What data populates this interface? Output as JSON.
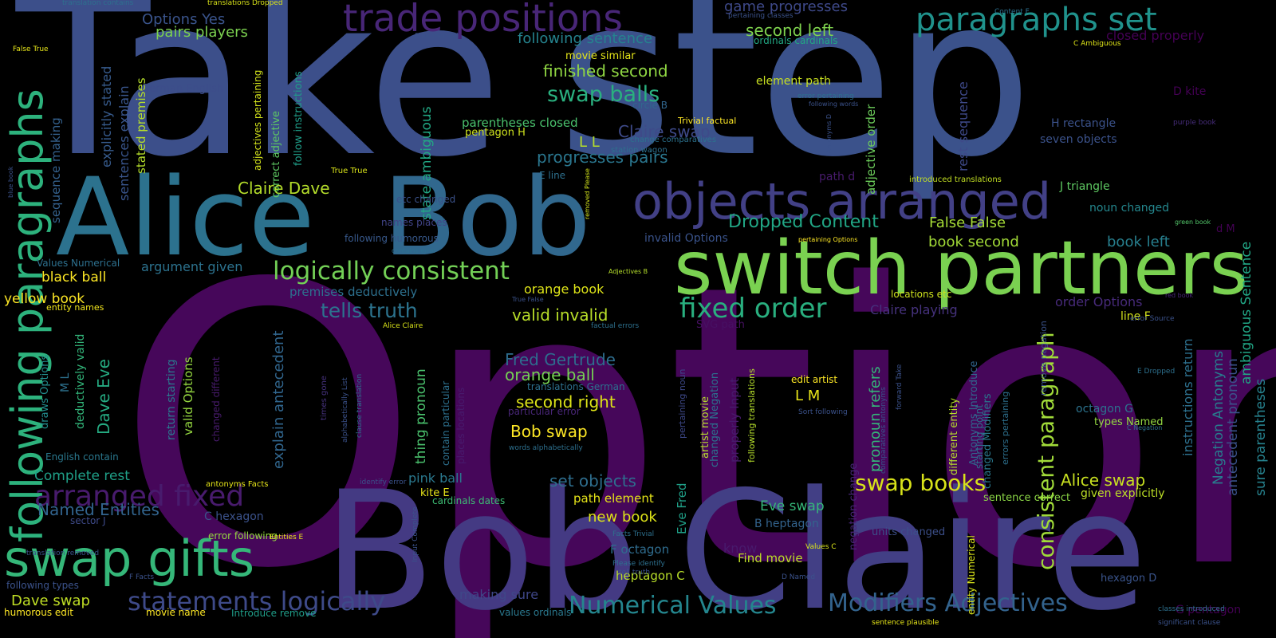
{
  "words": [
    {
      "text": "Options",
      "c": "#46075a"
    },
    {
      "text": "Take",
      "c": "#3c4f8a"
    },
    {
      "text": "step",
      "c": "#3b528b"
    },
    {
      "text": "Claire",
      "c": "#423f85"
    },
    {
      "text": "Bob",
      "c": "#443a83"
    },
    {
      "text": "Bob",
      "c": "#31688e"
    },
    {
      "text": "Alice",
      "c": "#2c728e"
    },
    {
      "text": "switch partners",
      "c": "#7ad151"
    },
    {
      "text": "objects arranged",
      "c": "#424086"
    },
    {
      "text": "trade positions",
      "c": "#482677"
    },
    {
      "text": "paragraphs set",
      "c": "#20928c"
    },
    {
      "text": "swap gifts",
      "c": "#35b779"
    },
    {
      "text": "following paragraphs",
      "c": "#2db27d"
    },
    {
      "text": "logically consistent",
      "c": "#73d056"
    },
    {
      "text": "arranged fixed",
      "c": "#481b6d"
    },
    {
      "text": "statements logically",
      "c": "#3e4a89"
    },
    {
      "text": "Numerical Values",
      "c": "#24868e"
    },
    {
      "text": "Modifiers Adjectives",
      "c": "#33638d"
    },
    {
      "text": "fixed order",
      "c": "#29af7f"
    },
    {
      "text": "consistent paragraph",
      "c": "#a0da39"
    },
    {
      "text": "swap books",
      "c": "#d8e219"
    },
    {
      "text": "Dropped Content",
      "c": "#21a685"
    },
    {
      "text": "tells truth",
      "c": "#2c738e"
    },
    {
      "text": "valid invalid",
      "c": "#b8de29"
    },
    {
      "text": "swap balls",
      "c": "#2ab07f"
    },
    {
      "text": "Named Entities",
      "c": "#32648e"
    },
    {
      "text": "Claire Dave",
      "c": "#b5de2b"
    },
    {
      "text": "Alice swap",
      "c": "#c8e020"
    },
    {
      "text": "second left",
      "c": "#7fd34e"
    },
    {
      "text": "finished second",
      "c": "#90d743"
    },
    {
      "text": "progresses pairs",
      "c": "#2a768e"
    },
    {
      "text": "Claire swap",
      "c": "#3e4a89"
    },
    {
      "text": "set objects",
      "c": "#2e6e8e"
    },
    {
      "text": "second right",
      "c": "#dde318"
    },
    {
      "text": "Bob swap",
      "c": "#fde725"
    },
    {
      "text": "orange ball",
      "c": "#75d054"
    },
    {
      "text": "orange book",
      "c": "#dde318"
    },
    {
      "text": "Fred Gertrude",
      "c": "#2e6d8e"
    },
    {
      "text": "Dave Eve",
      "c": "#25ab82"
    },
    {
      "text": "Options Yes",
      "c": "#3a548c"
    },
    {
      "text": "pairs players",
      "c": "#7cd250"
    },
    {
      "text": "following sentence",
      "c": "#25838e"
    },
    {
      "text": "game progresses",
      "c": "#3e4989"
    },
    {
      "text": "L L",
      "c": "#b5de2b"
    },
    {
      "text": "L M",
      "c": "#e7e419"
    },
    {
      "text": "black ball",
      "c": "#fde725"
    },
    {
      "text": "yellow book",
      "c": "#fde725"
    },
    {
      "text": "argument given",
      "c": "#2c728e"
    },
    {
      "text": "Complete rest",
      "c": "#1fa088"
    },
    {
      "text": "Eve swap",
      "c": "#35b779"
    },
    {
      "text": "Dave swap",
      "c": "#c0df25"
    },
    {
      "text": "new book",
      "c": "#dde318"
    },
    {
      "text": "pink ball",
      "c": "#2a788e"
    },
    {
      "text": "book second",
      "c": "#a2da37"
    },
    {
      "text": "book left",
      "c": "#277f8e"
    },
    {
      "text": "False False",
      "c": "#a5db36"
    },
    {
      "text": "closed properly",
      "c": "#440154"
    },
    {
      "text": "Claire playing",
      "c": "#46327e"
    },
    {
      "text": "order Options",
      "c": "#472a7a"
    },
    {
      "text": "sentences explain",
      "c": "#39558c"
    },
    {
      "text": "explicitly stated",
      "c": "#375b8d"
    },
    {
      "text": "stated premises",
      "c": "#b5de2b"
    },
    {
      "text": "sequence making",
      "c": "#34618d"
    },
    {
      "text": "state ambiguous",
      "c": "#22a884"
    },
    {
      "text": "rest sequence",
      "c": "#3e4989"
    },
    {
      "text": "adjective order",
      "c": "#6ccd5a"
    },
    {
      "text": "thing pronoun",
      "c": "#4ac16d"
    },
    {
      "text": "pronoun refers",
      "c": "#34b679"
    },
    {
      "text": "explain antecedent",
      "c": "#31668e"
    },
    {
      "text": "Negation Antonyms",
      "c": "#287c8e"
    },
    {
      "text": "antecedent pronoun",
      "c": "#3b528b"
    },
    {
      "text": "ambiguous Sentence",
      "c": "#21a685"
    },
    {
      "text": "sure parentheses",
      "c": "#26828e"
    },
    {
      "text": "instructions return",
      "c": "#2d708e"
    },
    {
      "text": "premises deductively",
      "c": "#2d708e"
    },
    {
      "text": "parentheses closed",
      "c": "#4ac16d"
    },
    {
      "text": "element path",
      "c": "#c8e020"
    },
    {
      "text": "path element",
      "c": "#e5e419"
    },
    {
      "text": "making sure",
      "c": "#3f4788"
    },
    {
      "text": "heptagon C",
      "c": "#b8de29"
    },
    {
      "text": "F octagon",
      "c": "#2f6c8e"
    },
    {
      "text": "Find movie",
      "c": "#bddf26"
    },
    {
      "text": "know",
      "c": "#481a6c"
    },
    {
      "text": "invalid Options",
      "c": "#3a538b"
    },
    {
      "text": "valid Options",
      "c": "#95d840"
    },
    {
      "text": "return starting",
      "c": "#2a788e"
    },
    {
      "text": "deductively valid",
      "c": "#32b67a"
    },
    {
      "text": "M L",
      "c": "#2d718e"
    },
    {
      "text": "draws Options",
      "c": "#228d8d"
    },
    {
      "text": "C hexagon",
      "c": "#3b528b"
    },
    {
      "text": "B heptagon",
      "c": "#33638d"
    },
    {
      "text": "hexagon D",
      "c": "#3a548c"
    },
    {
      "text": "G pentagon",
      "c": "#440154"
    },
    {
      "text": "octagon G",
      "c": "#2c738e"
    },
    {
      "text": "line F",
      "c": "#d2e21b"
    },
    {
      "text": "D kite",
      "c": "#440154"
    },
    {
      "text": "H rectangle",
      "c": "#3b528b"
    },
    {
      "text": "J triangle",
      "c": "#5ec962"
    },
    {
      "text": "seven objects",
      "c": "#3b528b"
    },
    {
      "text": "noun changed",
      "c": "#24878e"
    },
    {
      "text": "d M",
      "c": "#440154"
    },
    {
      "text": "types Named",
      "c": "#93d741"
    },
    {
      "text": "given explicitly",
      "c": "#bddf26"
    },
    {
      "text": "sentence correct",
      "c": "#8bd646"
    },
    {
      "text": "units changed",
      "c": "#3c4f8a"
    },
    {
      "text": "edit artist",
      "c": "#fde725"
    },
    {
      "text": "SVG path",
      "c": "#471063"
    },
    {
      "text": "particular error",
      "c": "#482677"
    },
    {
      "text": "translations German",
      "c": "#2d708e"
    },
    {
      "text": "E line",
      "c": "#2d708e"
    },
    {
      "text": "kite E",
      "c": "#e7e419"
    },
    {
      "text": "cardinals dates",
      "c": "#3dbc74"
    },
    {
      "text": "English contain",
      "c": "#2a788e"
    },
    {
      "text": "sector J",
      "c": "#3e4a89"
    },
    {
      "text": "Values Numerical",
      "c": "#2d708e"
    },
    {
      "text": "entity names",
      "c": "#f1e51d"
    },
    {
      "text": "German English",
      "c": "#3d4d8a"
    },
    {
      "text": "movie similar",
      "c": "#e3e418"
    },
    {
      "text": "pentagon H",
      "c": "#cde11d"
    },
    {
      "text": "circle B",
      "c": "#31668e"
    },
    {
      "text": "following humorous",
      "c": "#38598c"
    },
    {
      "text": "names places",
      "c": "#414487"
    },
    {
      "text": "etc changed",
      "c": "#3b528b"
    },
    {
      "text": "locations etc",
      "c": "#cde11d"
    },
    {
      "text": "error following",
      "c": "#95d840"
    },
    {
      "text": "following types",
      "c": "#3b528b"
    },
    {
      "text": "humorous edit",
      "c": "#fde725"
    },
    {
      "text": "movie name",
      "c": "#fde725"
    },
    {
      "text": "Introduce remove",
      "c": "#1f9e89"
    },
    {
      "text": "values ordinals",
      "c": "#2a788e"
    },
    {
      "text": "ordinals cardinals",
      "c": "#22a884"
    },
    {
      "text": "correct adjective",
      "c": "#5ec962"
    },
    {
      "text": "follow instructions",
      "c": "#1f9e89"
    },
    {
      "text": "adjectives pertaining",
      "c": "#d2e21b"
    },
    {
      "text": "Trivial factual",
      "c": "#fde725"
    },
    {
      "text": "change comparatives",
      "c": "#2c728e"
    },
    {
      "text": "station wagon",
      "c": "#2d708e"
    },
    {
      "text": "introduced translations",
      "c": "#c2df23"
    },
    {
      "text": "Content F",
      "c": "#2d708e"
    },
    {
      "text": "C Ambiguous",
      "c": "#dde318"
    },
    {
      "text": "purple book",
      "c": "#472d7b"
    },
    {
      "text": "green book",
      "c": "#52c569"
    },
    {
      "text": "error pertaining",
      "c": "#2d708e"
    },
    {
      "text": "following words",
      "c": "#3b528b"
    },
    {
      "text": "pertaining classes",
      "c": "#3b528b"
    },
    {
      "text": "B Numerical",
      "c": "#3b528b"
    },
    {
      "text": "True True",
      "c": "#d8e219"
    },
    {
      "text": "False True",
      "c": "#e5e419"
    },
    {
      "text": "translation contains",
      "c": "#2d708e"
    },
    {
      "text": "translations Dropped",
      "c": "#d8e219"
    },
    {
      "text": "blue book",
      "c": "#3b528b"
    },
    {
      "text": "contains error",
      "c": "#2d708e"
    },
    {
      "text": "removed Please",
      "c": "#d2e21b"
    },
    {
      "text": "pertaining Options",
      "c": "#fde725"
    },
    {
      "text": "Antonyms D",
      "c": "#3b528b"
    },
    {
      "text": "Adjectives B",
      "c": "#b5de2b"
    },
    {
      "text": "True False",
      "c": "#3b528b"
    },
    {
      "text": "red book",
      "c": "#482677"
    },
    {
      "text": "Alice Claire",
      "c": "#d8e219"
    },
    {
      "text": "factual errors",
      "c": "#2d708e"
    },
    {
      "text": "error Source",
      "c": "#3b528b"
    },
    {
      "text": "E Dropped",
      "c": "#2d708e"
    },
    {
      "text": "C Negation",
      "c": "#2d708e"
    },
    {
      "text": "Sort following",
      "c": "#3b528b"
    },
    {
      "text": "words alphabetically",
      "c": "#2d708e"
    },
    {
      "text": "identify error",
      "c": "#3b528b"
    },
    {
      "text": "Entities E",
      "c": "#e5e419"
    },
    {
      "text": "translation removed",
      "c": "#3b528b"
    },
    {
      "text": "F Facts",
      "c": "#3b528b"
    },
    {
      "text": "antonyms Facts",
      "c": "#e5e419"
    },
    {
      "text": "Facts Trivial",
      "c": "#2d708e"
    },
    {
      "text": "Please identify",
      "c": "#2d708e"
    },
    {
      "text": "tell truth",
      "c": "#3b528b"
    },
    {
      "text": "Values C",
      "c": "#d8e219"
    },
    {
      "text": "D Named",
      "c": "#3b528b"
    },
    {
      "text": "sentence plausible",
      "c": "#e5e419"
    },
    {
      "text": "significant clause",
      "c": "#3b528b"
    },
    {
      "text": "classes introduced",
      "c": "#2d708e"
    },
    {
      "text": "artist movie",
      "c": "#b5de2b"
    },
    {
      "text": "Eve Fred",
      "c": "#1fa088"
    },
    {
      "text": "changed Negation",
      "c": "#2c728e"
    },
    {
      "text": "properly Input",
      "c": "#481b6d"
    },
    {
      "text": "following translations",
      "c": "#b5de2b"
    },
    {
      "text": "pertaining noun",
      "c": "#3e4989"
    },
    {
      "text": "contain particular",
      "c": "#2d708e"
    },
    {
      "text": "places locations",
      "c": "#481b6d"
    },
    {
      "text": "path d",
      "c": "#481b6d"
    },
    {
      "text": "remove negation",
      "c": "#3b528b"
    },
    {
      "text": "different entity",
      "c": "#b5de2b"
    },
    {
      "text": "starting point",
      "c": "#2d708e"
    },
    {
      "text": "Antonyms Introduce",
      "c": "#31668e"
    },
    {
      "text": "changed Modifiers",
      "c": "#2a788e"
    },
    {
      "text": "errors pertaining",
      "c": "#2d708e"
    },
    {
      "text": "negation change",
      "c": "#482677"
    },
    {
      "text": "comparatives antonyms",
      "c": "#3b528b"
    },
    {
      "text": "forward Take",
      "c": "#3b528b"
    },
    {
      "text": "entity Numerical",
      "c": "#d8e219"
    },
    {
      "text": "changed different",
      "c": "#481b6d"
    },
    {
      "text": "times gone",
      "c": "#46327e"
    },
    {
      "text": "alphabetically List",
      "c": "#3b528b"
    },
    {
      "text": "clause translation",
      "c": "#2d708e"
    },
    {
      "text": "Input Complete",
      "c": "#3b528b"
    }
  ]
}
